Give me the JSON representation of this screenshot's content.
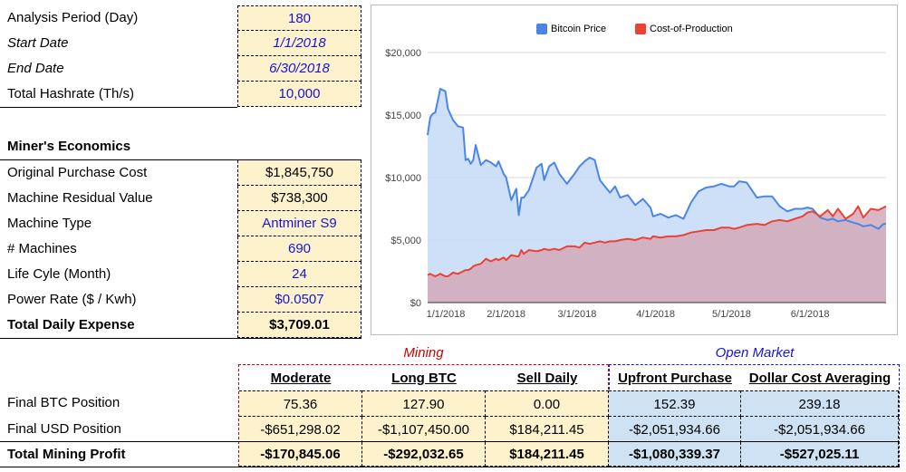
{
  "params": {
    "analysis_period": {
      "label": "Analysis Period (Day)",
      "value": "180"
    },
    "start_date": {
      "label": "Start Date",
      "value": "1/1/2018"
    },
    "end_date": {
      "label": "End Date",
      "value": "6/30/2018"
    },
    "total_hashrate": {
      "label": "Total Hashrate (Th/s)",
      "value": "10,000"
    }
  },
  "economics": {
    "title": "Miner's Economics",
    "original_purchase_cost": {
      "label": "Original Purchase Cost",
      "value": "$1,845,750"
    },
    "machine_residual_value": {
      "label": "Machine Residual Value",
      "value": "$738,300"
    },
    "machine_type": {
      "label": "Machine Type",
      "value": "Antminer S9"
    },
    "machines": {
      "label": "# Machines",
      "value": "690"
    },
    "life_cycle": {
      "label": "Life Cyle (Month)",
      "value": "24"
    },
    "power_rate": {
      "label": "Power Rate ($ / Kwh)",
      "value": "$0.0507"
    },
    "total_daily_expense": {
      "label": "Total Daily Expense",
      "value": "$3,709.01"
    }
  },
  "results": {
    "mining_group": "Mining",
    "open_market_group": "Open Market",
    "columns": [
      "Moderate",
      "Long BTC",
      "Sell Daily",
      "Upfront Purchase",
      "Dollar Cost Averaging"
    ],
    "rows": [
      {
        "label": "Final BTC Position",
        "values": [
          "75.36",
          "127.90",
          "0.00",
          "152.39",
          "239.18"
        ]
      },
      {
        "label": "Final USD Position",
        "values": [
          "-$651,298.02",
          "-$1,107,450.00",
          "$184,211.45",
          "-$2,051,934.66",
          "-$2,051,934.66"
        ]
      },
      {
        "label": "Total Mining Profit",
        "values": [
          "-$170,845.06",
          "-$292,032.65",
          "$184,211.45",
          "-$1,080,339.37",
          "-$527,025.11"
        ]
      }
    ]
  },
  "colors": {
    "btc": "#4a86e8",
    "btc_fill": "#c6d9f7",
    "cost": "#ea4335",
    "cost_fill": "#d2a9b8",
    "yellow": "#fdf2cc",
    "blue_cell": "#cfe2f3",
    "mining_red": "#cc0000",
    "open_blue": "#1515d8"
  },
  "chart_data": {
    "type": "area",
    "title": "",
    "xlabel": "",
    "ylabel": "",
    "x_ticks": [
      "1/1/2018",
      "2/1/2018",
      "3/1/2018",
      "4/1/2018",
      "5/1/2018",
      "6/1/2018"
    ],
    "y_ticks": [
      "$0",
      "$5,000",
      "$10,000",
      "$15,000",
      "$20,000"
    ],
    "ylim": [
      0,
      20000
    ],
    "xlim": [
      0,
      181
    ],
    "legend": {
      "position": "top",
      "labels": [
        "Bitcoin Price",
        "Cost-of-Production"
      ]
    },
    "x": [
      0,
      1,
      2,
      3,
      5,
      7,
      8,
      10,
      12,
      14,
      15,
      16,
      17,
      18,
      19,
      21,
      23,
      25,
      27,
      28,
      30,
      31,
      33,
      35,
      36,
      37,
      38,
      40,
      43,
      45,
      46,
      48,
      50,
      52,
      55,
      58,
      60,
      62,
      64,
      66,
      68,
      70,
      72,
      74,
      76,
      79,
      82,
      85,
      88,
      89,
      92,
      95,
      98,
      101,
      104,
      107,
      110,
      113,
      116,
      119,
      121,
      123,
      126,
      130,
      133,
      136,
      139,
      142,
      145,
      148,
      150,
      152,
      155,
      158,
      160,
      162,
      165,
      168,
      170,
      172,
      175,
      178,
      180,
      181
    ],
    "series": [
      {
        "name": "Bitcoin Price",
        "values": [
          13400,
          14800,
          15100,
          15200,
          17100,
          16900,
          15500,
          14600,
          14100,
          14000,
          11400,
          11500,
          11100,
          11400,
          12600,
          11000,
          11400,
          11200,
          10900,
          11300,
          10300,
          10000,
          8200,
          9100,
          7000,
          8400,
          8400,
          9000,
          10800,
          11100,
          9800,
          10900,
          11200,
          10300,
          9500,
          10300,
          10900,
          11300,
          11600,
          11400,
          9800,
          9300,
          8800,
          9300,
          8400,
          8600,
          7800,
          8300,
          7600,
          6900,
          7100,
          6800,
          7000,
          6700,
          8000,
          8900,
          9200,
          9300,
          9500,
          9300,
          9300,
          9700,
          9600,
          8400,
          8500,
          8500,
          7700,
          7300,
          7500,
          7500,
          7600,
          7500,
          6800,
          6600,
          6700,
          6500,
          6600,
          6400,
          6300,
          6100,
          6200,
          5900,
          6300,
          6300
        ]
      },
      {
        "name": "Cost-of-Production",
        "values": [
          2200,
          2300,
          2200,
          2100,
          2300,
          2100,
          2100,
          2400,
          2300,
          2500,
          2600,
          2600,
          2700,
          2900,
          3000,
          3100,
          3500,
          3300,
          3500,
          3400,
          3600,
          3400,
          3800,
          3700,
          3700,
          4200,
          3900,
          4200,
          4100,
          4200,
          4300,
          4200,
          4300,
          4200,
          4500,
          4500,
          4400,
          4800,
          4700,
          4800,
          4900,
          4800,
          4900,
          4900,
          5000,
          5100,
          5000,
          5200,
          5100,
          5300,
          5200,
          5300,
          5300,
          5400,
          5600,
          5700,
          5800,
          5800,
          6000,
          6000,
          5900,
          6000,
          6200,
          6300,
          6200,
          6500,
          6600,
          6500,
          6700,
          6900,
          7200,
          7300,
          6900,
          7400,
          6900,
          7500,
          6700,
          7100,
          7700,
          6800,
          7500,
          7400,
          7600,
          7700
        ]
      }
    ]
  }
}
